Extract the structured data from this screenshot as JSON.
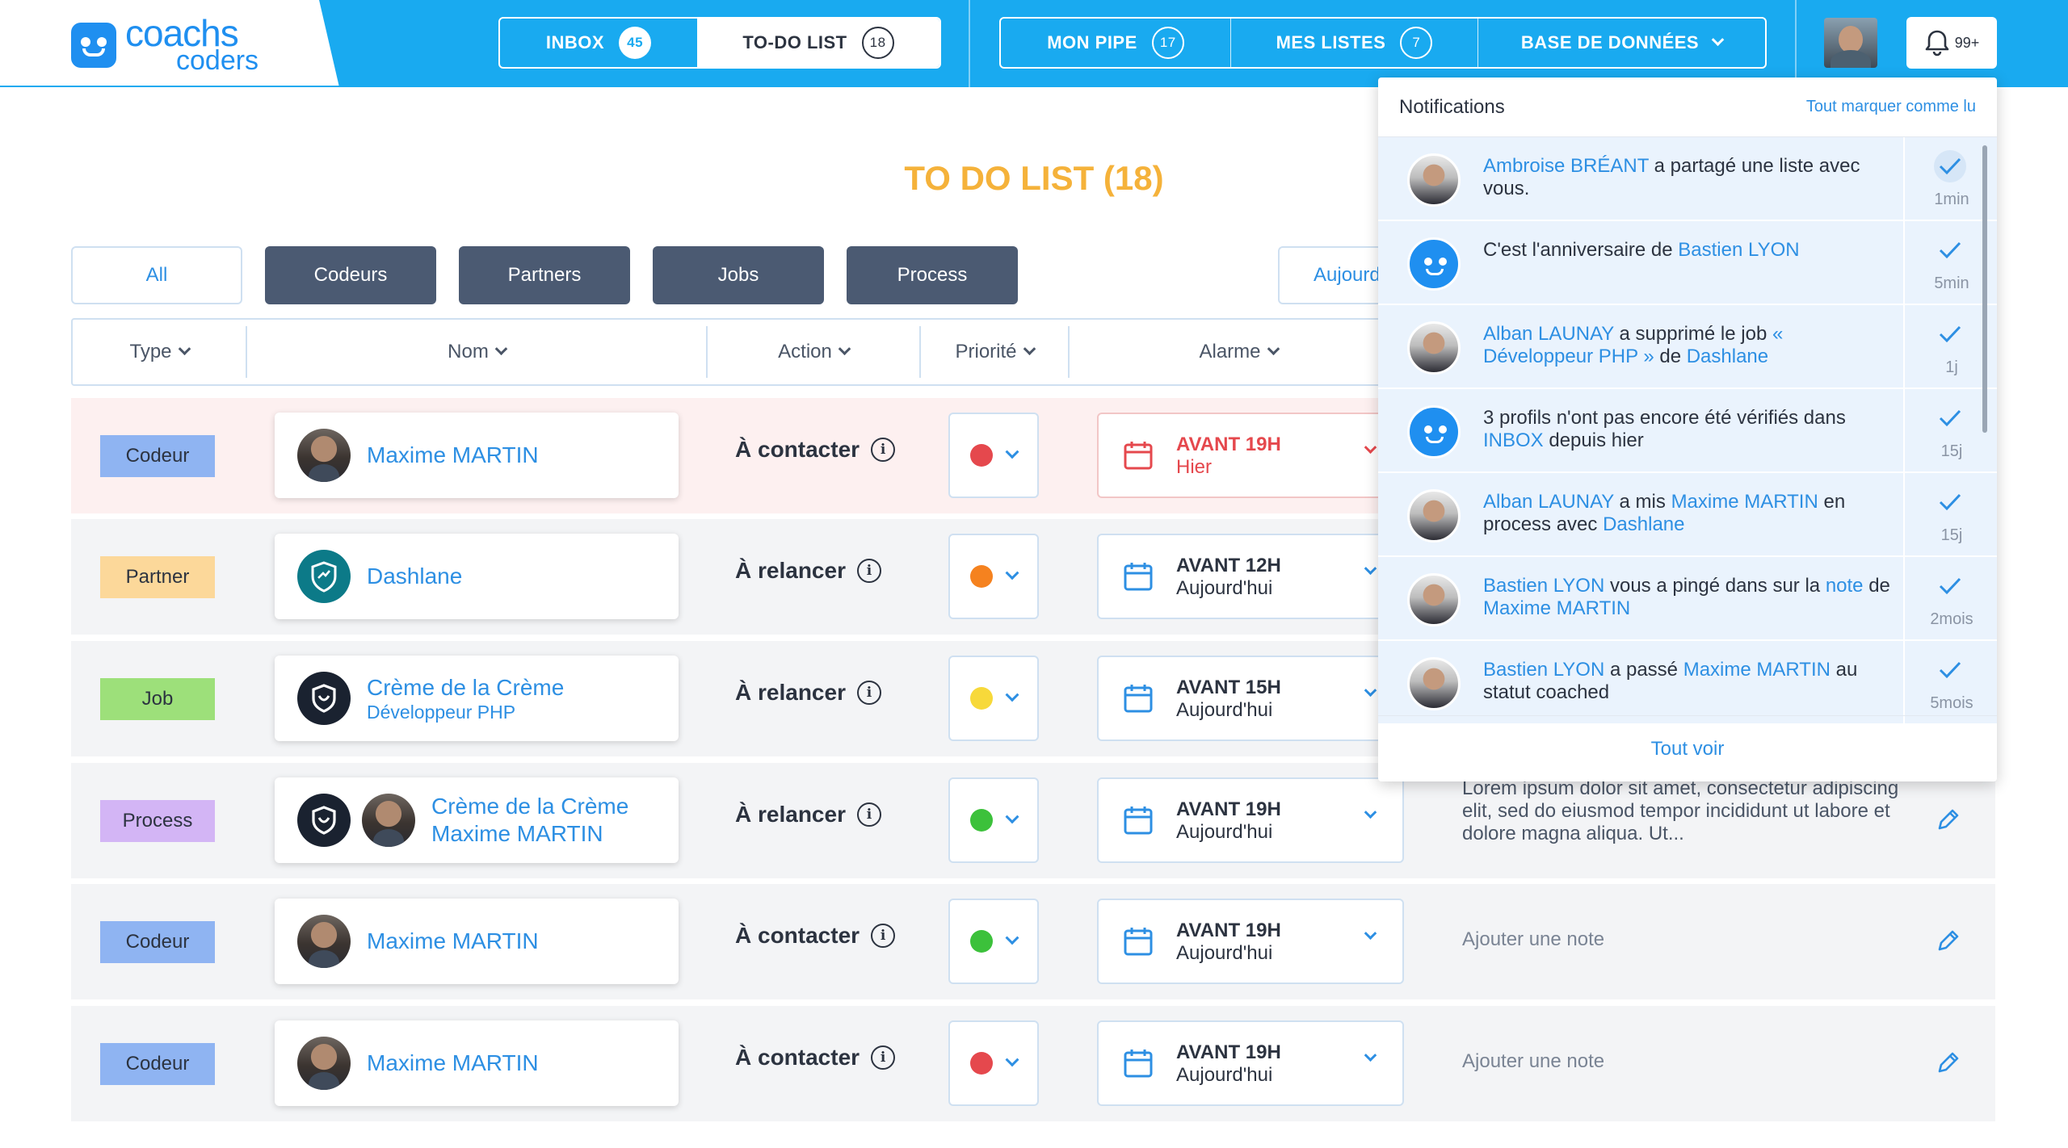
{
  "logo": {
    "line1": "coachs",
    "line2": "coders"
  },
  "nav": {
    "inbox": {
      "label": "INBOX",
      "count": "45"
    },
    "todo": {
      "label": "TO-DO LIST",
      "count": "18"
    },
    "pipe": {
      "label": "MON PIPE",
      "count": "17"
    },
    "lists": {
      "label": "MES LISTES",
      "count": "7"
    },
    "db": {
      "label": "BASE DE DONNÉES"
    },
    "notif_count": "99+"
  },
  "page_title": "TO DO LIST (18)",
  "filters": [
    "All",
    "Codeurs",
    "Partners",
    "Jobs",
    "Process"
  ],
  "date_filter": "Aujourd'hui",
  "columns": {
    "type": "Type",
    "name": "Nom",
    "action": "Action",
    "priority": "Priorité",
    "alarm": "Alarme"
  },
  "rows": [
    {
      "tag": "Codeur",
      "tag_color": "#8fb4f2",
      "name": "Maxime MARTIN",
      "sub": "",
      "action": "À contacter",
      "priority_color": "#e5484d",
      "alarm_time": "AVANT 19H",
      "alarm_day": "Hier",
      "note": "",
      "highlight": true
    },
    {
      "tag": "Partner",
      "tag_color": "#fcd89a",
      "name": "Dashlane",
      "sub": "",
      "action": "À relancer",
      "priority_color": "#f5821f",
      "alarm_time": "AVANT 12H",
      "alarm_day": "Aujourd'hui",
      "note": ""
    },
    {
      "tag": "Job",
      "tag_color": "#9de07a",
      "name": "Crème de la Crème",
      "sub": "Développeur PHP",
      "action": "À relancer",
      "priority_color": "#f7d93a",
      "alarm_time": "AVANT 15H",
      "alarm_day": "Aujourd'hui",
      "note": ""
    },
    {
      "tag": "Process",
      "tag_color": "#d3b5f5",
      "name": "Crème de la Crème",
      "sub": "Maxime MARTIN",
      "action": "À relancer",
      "priority_color": "#3cc13b",
      "alarm_time": "AVANT 19H",
      "alarm_day": "Aujourd'hui",
      "note": "Lorem ipsum dolor sit amet, consectetur adipiscing elit, sed do eiusmod tempor incididunt ut labore et dolore magna aliqua. Ut..."
    },
    {
      "tag": "Codeur",
      "tag_color": "#8fb4f2",
      "name": "Maxime MARTIN",
      "sub": "",
      "action": "À contacter",
      "priority_color": "#3cc13b",
      "alarm_time": "AVANT 19H",
      "alarm_day": "Aujourd'hui",
      "note": "Ajouter une note"
    },
    {
      "tag": "Codeur",
      "tag_color": "#8fb4f2",
      "name": "Maxime MARTIN",
      "sub": "",
      "action": "À contacter",
      "priority_color": "#e5484d",
      "alarm_time": "AVANT 19H",
      "alarm_day": "Aujourd'hui",
      "note": "Ajouter une note"
    }
  ],
  "notifications": {
    "title": "Notifications",
    "mark_all": "Tout marquer comme lu",
    "see_all": "Tout voir",
    "items": [
      {
        "a": "Ambroise BRÉANT",
        "b": " a partagé une liste avec vous.",
        "c": "",
        "d": "",
        "e": "",
        "f": "",
        "time": "1min"
      },
      {
        "a": "",
        "b": "C'est l'anniversaire de ",
        "c": "Bastien LYON",
        "d": "",
        "e": "",
        "f": "",
        "time": "5min"
      },
      {
        "a": "Alban LAUNAY",
        "b": " a supprimé le job ",
        "c": "« Développeur PHP »",
        "d": " de ",
        "e": "Dashlane",
        "f": "",
        "time": "1j"
      },
      {
        "a": "",
        "b": "3 profils n'ont pas encore été vérifiés dans ",
        "c": "INBOX",
        "d": " depuis hier",
        "e": "",
        "f": "",
        "time": "15j"
      },
      {
        "a": "Alban LAUNAY",
        "b": " a mis ",
        "c": "Maxime MARTIN",
        "d": " en process avec ",
        "e": "Dashlane",
        "f": "",
        "time": "15j"
      },
      {
        "a": "Bastien LYON",
        "b": " vous a pingé dans sur la ",
        "c": "note",
        "d": " de ",
        "e": "Maxime MARTIN",
        "f": "",
        "time": "2mois"
      },
      {
        "a": "Bastien LYON",
        "b": " a passé ",
        "c": "Maxime MARTIN",
        "d": " au statut coached",
        "e": "",
        "f": "",
        "time": "5mois"
      }
    ]
  }
}
